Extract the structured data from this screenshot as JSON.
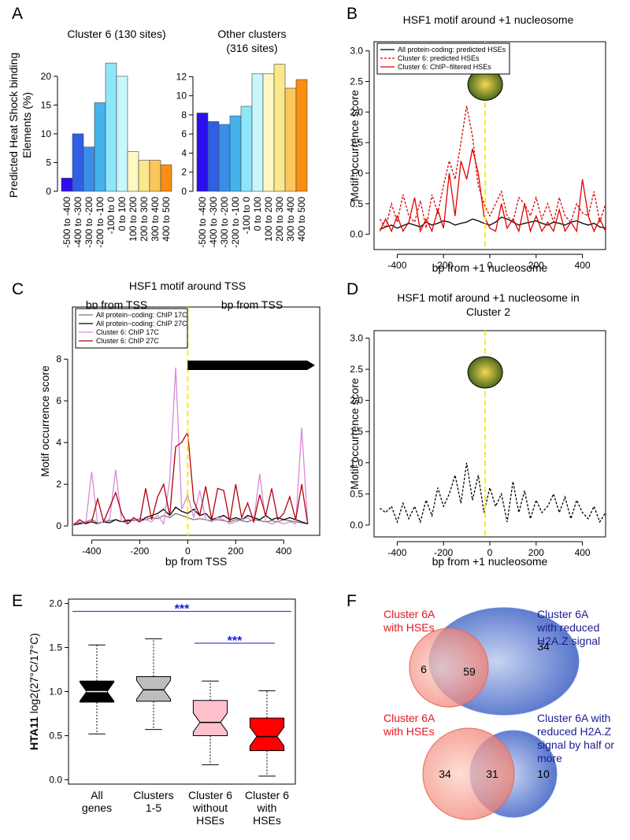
{
  "chart_data": [
    {
      "type": "bar",
      "panel": "A",
      "title": [
        "Cluster 6 (130 sites)"
      ],
      "categories": [
        "-500 to -400",
        "-400 to -300",
        "-300 to -200",
        "-200 to -100",
        "-100 to 0",
        "0 to 100",
        "100 to 200",
        "200 to 300",
        "300 to 400",
        "400 to 500"
      ],
      "values": [
        2.3,
        10,
        7.7,
        15.4,
        22.3,
        20,
        6.9,
        5.4,
        5.4,
        4.6
      ],
      "colors": [
        "#2a10ee",
        "#2f5fe6",
        "#3b8ee8",
        "#45b2ee",
        "#8ee6fa",
        "#c8f6fd",
        "#fdf8c4",
        "#fbe88c",
        "#fbc65a",
        "#f98e12"
      ],
      "ylim": [
        0,
        23
      ],
      "yticks": [
        0,
        5,
        10,
        15,
        20
      ],
      "xlabel": "bp from TSS",
      "ylabel": [
        "Predicted Heat Shock binding",
        "Elements  (%)"
      ]
    },
    {
      "type": "bar",
      "title": [
        "Other clusters",
        "(316 sites)"
      ],
      "categories": [
        "-500 to -400",
        "-400 to -300",
        "-300 to -200",
        "-200 to -100",
        "-100 to 0",
        "0 to 100",
        "100 to 200",
        "200 to 300",
        "300 to 400",
        "400 to 500"
      ],
      "values": [
        8.2,
        7.3,
        7.0,
        7.9,
        8.9,
        12.3,
        12.3,
        13.3,
        10.8,
        11.7
      ],
      "colors": [
        "#2a10ee",
        "#2f5fe6",
        "#3b8ee8",
        "#45b2ee",
        "#8ee6fa",
        "#c8f6fd",
        "#fdf8c4",
        "#fbe88c",
        "#fbc65a",
        "#f98e12"
      ],
      "ylim": [
        0,
        13.6
      ],
      "yticks": [
        0,
        2,
        4,
        6,
        8,
        10,
        12
      ],
      "xlabel": "bp from TSS"
    },
    {
      "type": "line",
      "panel": "B",
      "title": [
        "HSF1 motif around +1 nucleosome"
      ],
      "xlabel": "bp from +1 nucleosome",
      "ylabel": [
        "Motif occurrence score"
      ],
      "xlim": [
        -500,
        500
      ],
      "xticks": [
        -400,
        -200,
        0,
        200,
        400
      ],
      "ylim": [
        -0.25,
        3.15
      ],
      "yticks": [
        {
          "value": 0,
          "label": "0.0"
        },
        0.5,
        {
          "value": 1,
          "label": "1.0"
        },
        1.5,
        {
          "value": 2,
          "label": "2.0"
        },
        2.5,
        {
          "value": 3,
          "label": "3.0"
        }
      ],
      "vline": -20,
      "legend": "top-left",
      "x": [
        -475,
        -450,
        -425,
        -400,
        -375,
        -350,
        -325,
        -300,
        -275,
        -250,
        -225,
        -200,
        -175,
        -150,
        -125,
        -100,
        -75,
        -50,
        -25,
        0,
        25,
        50,
        75,
        100,
        125,
        150,
        175,
        200,
        225,
        250,
        275,
        300,
        325,
        350,
        375,
        400,
        425,
        450,
        475,
        500
      ],
      "series": [
        {
          "name": "All protein-coding: predicted HSEs",
          "color": "#000000",
          "dash": false,
          "values": [
            0.08,
            0.12,
            0.15,
            0.1,
            0.14,
            0.18,
            0.15,
            0.12,
            0.2,
            0.15,
            0.18,
            0.22,
            0.2,
            0.15,
            0.18,
            0.2,
            0.25,
            0.22,
            0.18,
            0.15,
            0.2,
            0.28,
            0.25,
            0.2,
            0.15,
            0.18,
            0.2,
            0.22,
            0.18,
            0.15,
            0.2,
            0.18,
            0.15,
            0.2,
            0.22,
            0.18,
            0.15,
            0.18,
            0.12,
            0.1
          ]
        },
        {
          "name": "Cluster 6: predicted HSEs",
          "color": "#e00000",
          "dash": true,
          "values": [
            0.25,
            0.1,
            0.5,
            0.2,
            0.65,
            0.3,
            0.2,
            0.55,
            0.1,
            0.65,
            0.35,
            0.8,
            1.2,
            0.9,
            1.5,
            2.1,
            1.6,
            0.8,
            0.5,
            0.3,
            0.5,
            0.7,
            0.3,
            0.2,
            0.6,
            0.5,
            0.3,
            0.6,
            0.25,
            0.5,
            0.2,
            0.6,
            0.3,
            0.2,
            0.5,
            0.35,
            0.3,
            0.7,
            0.2,
            0.5
          ]
        },
        {
          "name": "Cluster 6: ChIP−filtered HSEs",
          "color": "#e00000",
          "dash": false,
          "values": [
            0.05,
            0.25,
            0.05,
            0.3,
            0.05,
            0.2,
            0.6,
            0.05,
            0.25,
            0.05,
            0.4,
            0.1,
            1.0,
            0.3,
            1.2,
            0.9,
            1.4,
            1.0,
            0.3,
            0.1,
            0.05,
            0.5,
            0.1,
            0.25,
            0.05,
            0.5,
            0.05,
            0.3,
            0.05,
            0.2,
            0.05,
            0.4,
            0.05,
            0.2,
            0.05,
            0.9,
            0.3,
            0.05,
            0.25,
            0.05
          ]
        }
      ]
    },
    {
      "type": "line",
      "panel": "C",
      "title": [
        "HSF1 motif around TSS"
      ],
      "xlabel": "bp from TSS",
      "ylabel": [
        "Motif occurrence score"
      ],
      "xlim": [
        -480,
        550
      ],
      "xticks": [
        -400,
        -200,
        0,
        200,
        400
      ],
      "ylim": [
        -0.45,
        10.5
      ],
      "yticks": [
        0,
        2,
        4,
        6,
        8
      ],
      "vline": 0,
      "legend": "top-left",
      "x": [
        -475,
        -450,
        -425,
        -400,
        -375,
        -350,
        -325,
        -300,
        -275,
        -250,
        -225,
        -200,
        -175,
        -150,
        -125,
        -100,
        -75,
        -50,
        -25,
        0,
        25,
        50,
        75,
        100,
        125,
        150,
        175,
        200,
        225,
        250,
        275,
        300,
        325,
        350,
        375,
        400,
        425,
        450,
        475,
        500
      ],
      "series": [
        {
          "name": "All protein−coding: ChIP 17C",
          "color": "#777777",
          "dash": false,
          "values": [
            0.1,
            0.15,
            0.2,
            0.3,
            0.15,
            0.2,
            0.25,
            0.3,
            0.2,
            0.3,
            0.25,
            0.35,
            0.3,
            0.4,
            0.35,
            0.5,
            0.4,
            0.6,
            0.5,
            0.4,
            0.3,
            0.35,
            0.3,
            0.25,
            0.3,
            0.25,
            0.2,
            0.3,
            0.25,
            0.2,
            0.3,
            0.25,
            0.2,
            0.25,
            0.2,
            0.3,
            0.25,
            0.2,
            0.15,
            0.1
          ]
        },
        {
          "name": "All protein−coding: ChIP 27C",
          "color": "#000000",
          "dash": false,
          "values": [
            0.05,
            0.1,
            0.15,
            0.2,
            0.1,
            0.2,
            0.15,
            0.3,
            0.2,
            0.25,
            0.3,
            0.2,
            0.4,
            0.5,
            0.6,
            0.8,
            0.5,
            0.9,
            0.7,
            0.6,
            0.8,
            0.5,
            0.6,
            0.3,
            0.4,
            0.5,
            0.3,
            0.4,
            0.3,
            0.5,
            0.4,
            0.3,
            0.5,
            0.3,
            0.4,
            0.3,
            0.4,
            0.3,
            0.2,
            0.1
          ]
        },
        {
          "name": "Cluster 6: ChIP 17C",
          "color": "#d98ad6",
          "dash": false,
          "values": [
            0.05,
            0.2,
            0.1,
            2.6,
            0.1,
            0.2,
            0.3,
            2.7,
            0.2,
            0.1,
            0.3,
            0.2,
            0.3,
            0.2,
            0.5,
            0.1,
            2.2,
            7.6,
            0.8,
            1.5,
            0.4,
            1.7,
            0.3,
            0.2,
            0.4,
            0.3,
            0.1,
            0.2,
            0.3,
            0.4,
            0.2,
            2.5,
            0.2,
            0.1,
            0.2,
            0.1,
            0.2,
            0.1,
            4.7,
            0.1
          ]
        },
        {
          "name": "Cluster 6: ChIP 27C",
          "color": "#b00010",
          "dash": false,
          "values": [
            0.05,
            0.3,
            0.1,
            0.2,
            1.3,
            0.2,
            0.9,
            1.6,
            0.6,
            0.1,
            0.4,
            0.2,
            1.8,
            0.3,
            1.4,
            2.0,
            0.5,
            3.8,
            4.0,
            4.5,
            1.2,
            0.5,
            1.9,
            0.3,
            1.8,
            1.7,
            0.2,
            2.0,
            0.4,
            1.1,
            0.2,
            1.5,
            0.5,
            1.8,
            0.3,
            0.6,
            1.4,
            0.3,
            2.0,
            0.1
          ]
        }
      ]
    },
    {
      "type": "line",
      "panel": "D",
      "title": [
        "HSF1 motif around +1 nucleosome in",
        "Cluster 2"
      ],
      "xlabel": "bp from +1 nucleosome",
      "ylabel": [
        "Motif occurrence score"
      ],
      "xlim": [
        -500,
        500
      ],
      "xticks": [
        -400,
        -200,
        0,
        200,
        400
      ],
      "ylim": [
        -0.19,
        3.12
      ],
      "yticks": [
        {
          "value": 0,
          "label": "0.0"
        },
        0.5,
        {
          "value": 1,
          "label": "1.0"
        },
        1.5,
        {
          "value": 2,
          "label": "2.0"
        },
        2.5,
        {
          "value": 3,
          "label": "3.0"
        }
      ],
      "vline": -20,
      "x": [
        -475,
        -450,
        -425,
        -400,
        -375,
        -350,
        -325,
        -300,
        -275,
        -250,
        -225,
        -200,
        -175,
        -150,
        -125,
        -100,
        -75,
        -50,
        -25,
        0,
        25,
        50,
        75,
        100,
        125,
        150,
        175,
        200,
        225,
        250,
        275,
        300,
        325,
        350,
        375,
        400,
        425,
        450,
        475,
        500
      ],
      "series": [
        {
          "color": "#000000",
          "dash": true,
          "values": [
            0.27,
            0.2,
            0.3,
            0.05,
            0.35,
            0.1,
            0.3,
            0.05,
            0.4,
            0.15,
            0.6,
            0.3,
            0.5,
            0.8,
            0.35,
            1.0,
            0.4,
            0.8,
            0.2,
            0.6,
            0.3,
            0.5,
            0.05,
            0.7,
            0.2,
            0.55,
            0.1,
            0.4,
            0.2,
            0.3,
            0.5,
            0.2,
            0.45,
            0.1,
            0.4,
            0.2,
            0.1,
            0.3,
            0.05,
            0.2
          ]
        }
      ]
    },
    {
      "type": "box",
      "panel": "E",
      "ylabel_bold": "HTA11",
      "ylabel": "log2(27°C/17°C)",
      "ylim": [
        -0.05,
        2.05
      ],
      "yticks": [
        {
          "value": 0,
          "label": "0.0"
        },
        0.5,
        {
          "value": 1,
          "label": "1.0"
        },
        1.5,
        {
          "value": 2,
          "label": "2.0"
        }
      ],
      "categories": [
        [
          "All",
          "genes"
        ],
        [
          "Clusters",
          "1-5"
        ],
        [
          "Cluster 6",
          "without",
          "HSEs"
        ],
        [
          "Cluster 6",
          "with",
          "HSEs"
        ]
      ],
      "colors": [
        "#000000",
        "#bdbdbd",
        "#ffc0cb",
        "#ff0000"
      ],
      "boxes": [
        {
          "whislo": 0.52,
          "q1": 0.88,
          "med": 1.0,
          "q3": 1.12,
          "whishi": 1.53
        },
        {
          "whislo": 0.57,
          "q1": 0.89,
          "med": 1.02,
          "q3": 1.17,
          "whishi": 1.6
        },
        {
          "whislo": 0.17,
          "q1": 0.5,
          "med": 0.65,
          "q3": 0.9,
          "whishi": 1.12
        },
        {
          "whislo": 0.04,
          "q1": 0.33,
          "med": 0.49,
          "q3": 0.7,
          "whishi": 1.01
        }
      ],
      "annotations": [
        {
          "label": "***",
          "y": 1.91
        },
        {
          "label": "***",
          "y": 1.55
        }
      ]
    },
    {
      "type": "venn",
      "panel": "F",
      "venns": [
        {
          "left_label": [
            "Cluster 6A",
            "with HSEs"
          ],
          "right_label": [
            "Cluster 6A",
            "with reduced",
            "H2A.Z signal"
          ],
          "left_only": 6,
          "both": 59,
          "right_only": 34
        },
        {
          "left_label": [
            "Cluster 6A",
            "with HSEs"
          ],
          "right_label": [
            "Cluster 6A with",
            "reduced H2A.Z",
            "signal by half or",
            "more"
          ],
          "left_only": 34,
          "both": 31,
          "right_only": 10
        }
      ]
    }
  ]
}
